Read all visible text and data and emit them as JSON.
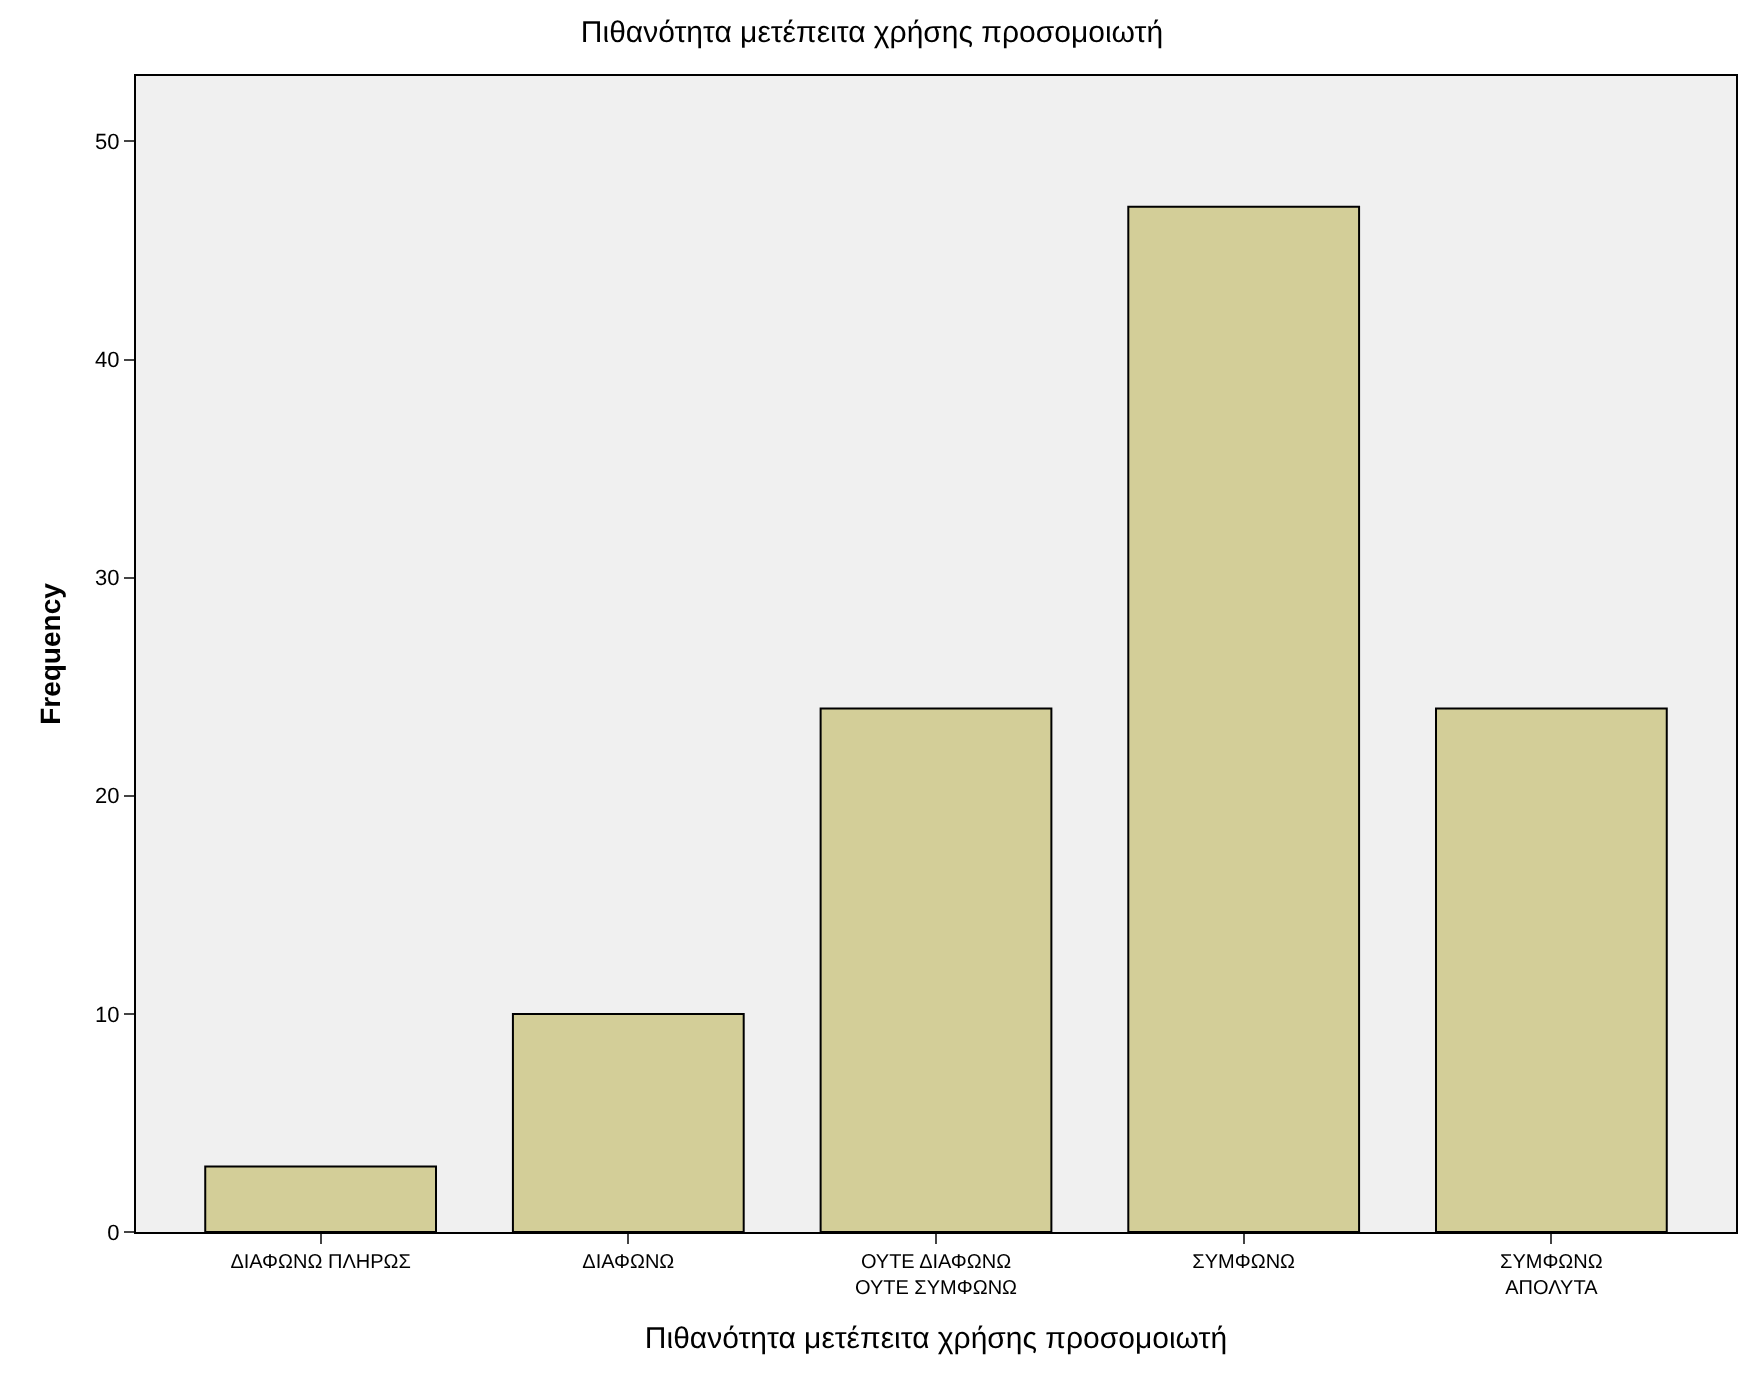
{
  "chart_data": {
    "type": "bar",
    "title": "Πιθανότητα μετέπειτα χρήσης προσομοιωτή",
    "xlabel": "Πιθανότητα μετέπειτα χρήσης προσομοιωτή",
    "ylabel": "Frequency",
    "categories": [
      "ΔΙΑΦΩΝΩ ΠΛΗΡΩΣ",
      "ΔΙΑΦΩΝΩ",
      "ΟΥΤΕ ΔΙΑΦΩΝΩ\nΟΥΤΕ ΣΥΜΦΩΝΩ",
      "ΣΥΜΦΩΝΩ",
      "ΣΥΜΦΩΝΩ\nΑΠΟΛΥΤΑ"
    ],
    "values": [
      3,
      10,
      24,
      47,
      24
    ],
    "color": "#d3ce98",
    "ylim": [
      0,
      53
    ],
    "yticks": [
      0,
      10,
      20,
      30,
      40,
      50
    ]
  }
}
